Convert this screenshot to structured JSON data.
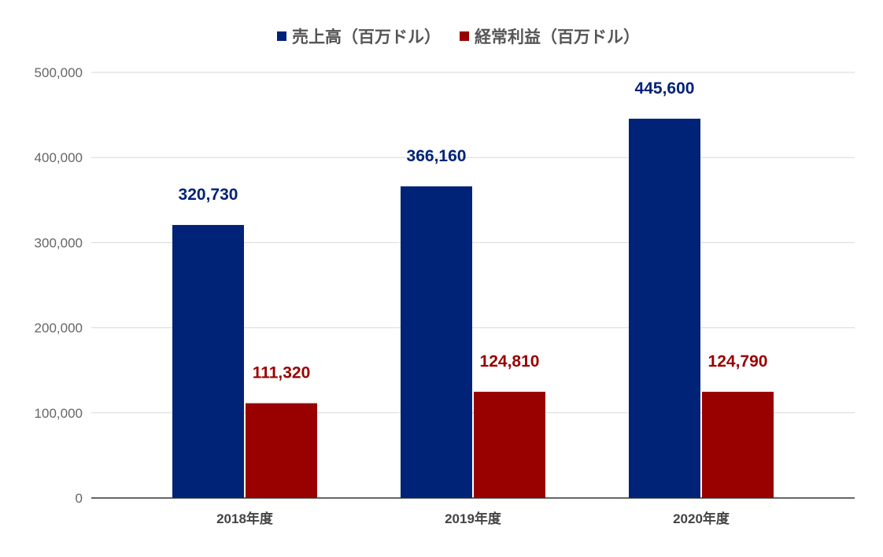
{
  "chart_data": {
    "type": "bar",
    "categories": [
      "2018年度",
      "2019年度",
      "2020年度"
    ],
    "series": [
      {
        "name": "売上高（百万ドル）",
        "values": [
          320730,
          366160,
          445600
        ],
        "color": "#002277",
        "label_color": "#002277"
      },
      {
        "name": "経常利益（百万ドル）",
        "values": [
          111320,
          124810,
          124790
        ],
        "color": "#990000",
        "label_color": "#990000"
      }
    ],
    "title": "",
    "xlabel": "",
    "ylabel": "",
    "ylim": [
      0,
      500000
    ],
    "yticks": [
      0,
      100000,
      200000,
      300000,
      400000,
      500000
    ],
    "ytick_labels": [
      "0",
      "100,000",
      "200,000",
      "300,000",
      "400,000",
      "500,000"
    ],
    "data_labels": [
      [
        "320,730",
        "366,160",
        "445,600"
      ],
      [
        "111,320",
        "124,810",
        "124,790"
      ]
    ],
    "grid": true,
    "legend_position": "top",
    "colors": {
      "gridline": "#d9d9d9",
      "baseline": "#333333"
    }
  }
}
